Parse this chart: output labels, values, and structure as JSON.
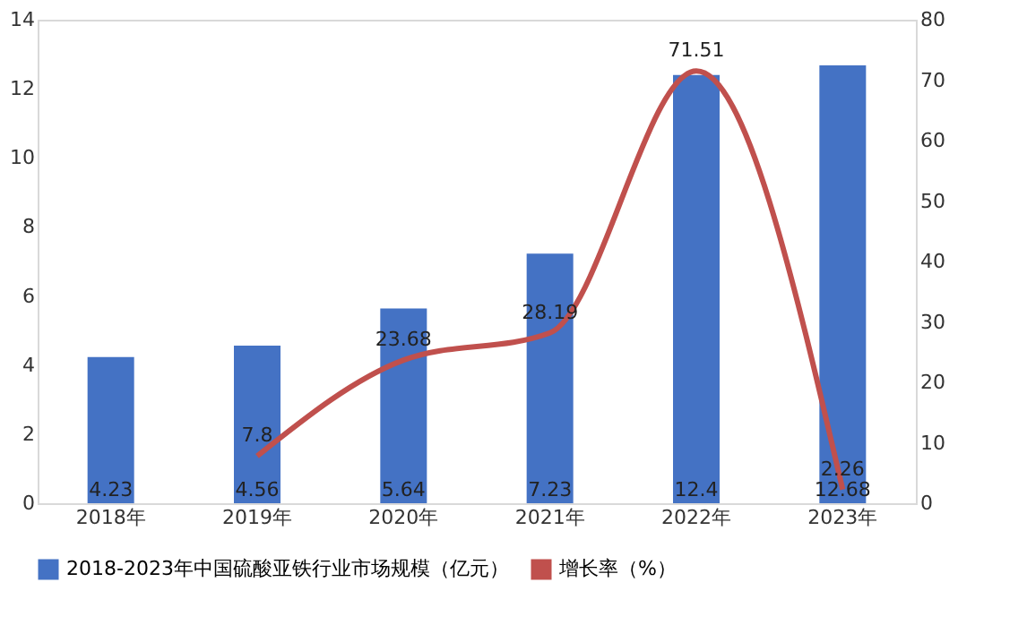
{
  "chart_data": {
    "type": "bar",
    "categories": [
      "2018年",
      "2019年",
      "2020年",
      "2021年",
      "2022年",
      "2023年"
    ],
    "series": [
      {
        "name": "2018-2023年中国硫酸亚铁行业市场规模（亿元）",
        "color": "#4472c4",
        "values": [
          4.23,
          4.56,
          5.64,
          7.23,
          12.4,
          12.68
        ]
      },
      {
        "name": "增长率（%）",
        "type": "line",
        "axis": "y2",
        "color": "#c0504d",
        "values": [
          null,
          7.8,
          23.68,
          28.19,
          71.51,
          2.26
        ]
      }
    ],
    "ylim": [
      0,
      14
    ],
    "yticks": [
      0,
      2,
      4,
      6,
      8,
      10,
      12,
      14
    ],
    "y2lim": [
      0,
      80
    ],
    "y2ticks": [
      0,
      10,
      20,
      30,
      40,
      50,
      60,
      70,
      80
    ],
    "data_labels": true,
    "legend": "bottom",
    "grid": false
  }
}
